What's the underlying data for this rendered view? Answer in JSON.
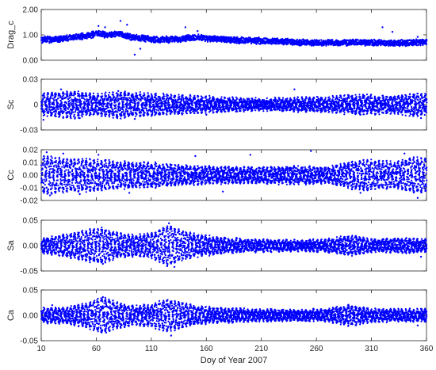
{
  "chart_data": [
    {
      "type": "scatter",
      "ylabel": "Drag_c",
      "xlim": [
        10,
        360
      ],
      "ylim": [
        0,
        2
      ],
      "yticks": [
        0,
        1,
        2
      ],
      "ytick_labels": [
        "0.00",
        "1.00",
        "2.00"
      ],
      "xticks": [
        10,
        60,
        110,
        160,
        210,
        260,
        310,
        360
      ],
      "color": "#0000ff",
      "profile": {
        "kind": "baseline",
        "points": [
          [
            10,
            0.8
          ],
          [
            30,
            0.85
          ],
          [
            50,
            0.95
          ],
          [
            60,
            1.05
          ],
          [
            70,
            1.0
          ],
          [
            80,
            1.05
          ],
          [
            90,
            0.92
          ],
          [
            110,
            0.82
          ],
          [
            130,
            0.82
          ],
          [
            150,
            0.9
          ],
          [
            180,
            0.8
          ],
          [
            220,
            0.75
          ],
          [
            260,
            0.68
          ],
          [
            300,
            0.7
          ],
          [
            330,
            0.68
          ],
          [
            360,
            0.72
          ]
        ],
        "spread": 0.2
      },
      "outliers": [
        [
          62,
          1.35
        ],
        [
          68,
          1.3
        ],
        [
          82,
          1.55
        ],
        [
          88,
          1.4
        ],
        [
          95,
          0.22
        ],
        [
          100,
          0.45
        ],
        [
          141,
          1.3
        ],
        [
          152,
          1.15
        ],
        [
          320,
          1.3
        ],
        [
          329,
          1.12
        ],
        [
          352,
          0.92
        ]
      ]
    },
    {
      "type": "scatter",
      "ylabel": "Sc",
      "xlim": [
        10,
        360
      ],
      "ylim": [
        -0.03,
        0.03
      ],
      "yticks": [
        -0.03,
        0,
        0.03
      ],
      "ytick_labels": [
        "-0.03",
        "0",
        "0.03"
      ],
      "xticks": [
        10,
        60,
        110,
        160,
        210,
        260,
        310,
        360
      ],
      "color": "#0000ff",
      "profile": {
        "kind": "oscillating",
        "points": [
          [
            10,
            0.012
          ],
          [
            40,
            0.014
          ],
          [
            60,
            0.01
          ],
          [
            80,
            0.014
          ],
          [
            110,
            0.011
          ],
          [
            140,
            0.009
          ],
          [
            170,
            0.007
          ],
          [
            210,
            0.005
          ],
          [
            240,
            0.006
          ],
          [
            270,
            0.007
          ],
          [
            300,
            0.01
          ],
          [
            330,
            0.008
          ],
          [
            350,
            0.012
          ],
          [
            360,
            0.01
          ]
        ],
        "period": 7,
        "noise": 0.003
      },
      "outliers": [
        [
          12,
          -0.018
        ],
        [
          28,
          0.018
        ],
        [
          45,
          -0.016
        ],
        [
          80,
          0.016
        ],
        [
          95,
          -0.017
        ],
        [
          160,
          -0.012
        ],
        [
          240,
          0.018
        ],
        [
          300,
          -0.012
        ],
        [
          355,
          -0.016
        ]
      ]
    },
    {
      "type": "scatter",
      "ylabel": "Cc",
      "xlim": [
        10,
        360
      ],
      "ylim": [
        -0.02,
        0.02
      ],
      "yticks": [
        -0.02,
        -0.01,
        0,
        0.01,
        0.02
      ],
      "ytick_labels": [
        "-0.02",
        "-0.01",
        "0.00",
        "0.01",
        "0.02"
      ],
      "xticks": [
        10,
        60,
        110,
        160,
        210,
        260,
        310,
        360
      ],
      "color": "#0000ff",
      "profile": {
        "kind": "oscillating",
        "points": [
          [
            10,
            0.014
          ],
          [
            30,
            0.012
          ],
          [
            60,
            0.011
          ],
          [
            90,
            0.009
          ],
          [
            120,
            0.008
          ],
          [
            150,
            0.006
          ],
          [
            180,
            0.005
          ],
          [
            210,
            0.005
          ],
          [
            240,
            0.006
          ],
          [
            270,
            0.005
          ],
          [
            300,
            0.011
          ],
          [
            330,
            0.009
          ],
          [
            350,
            0.013
          ],
          [
            360,
            0.012
          ]
        ],
        "period": 7,
        "noise": 0.002
      },
      "outliers": [
        [
          15,
          0.018
        ],
        [
          18,
          -0.016
        ],
        [
          30,
          0.017
        ],
        [
          45,
          -0.015
        ],
        [
          62,
          0.016
        ],
        [
          90,
          -0.014
        ],
        [
          150,
          0.015
        ],
        [
          175,
          -0.013
        ],
        [
          200,
          0.016
        ],
        [
          255,
          0.019
        ],
        [
          300,
          -0.014
        ],
        [
          340,
          0.017
        ],
        [
          352,
          -0.018
        ]
      ]
    },
    {
      "type": "scatter",
      "ylabel": "Sa",
      "xlim": [
        10,
        360
      ],
      "ylim": [
        -0.05,
        0.05
      ],
      "yticks": [
        -0.05,
        0,
        0.05
      ],
      "ytick_labels": [
        "-0.05",
        "0.00",
        "0.05"
      ],
      "xticks": [
        10,
        60,
        110,
        160,
        210,
        260,
        310,
        360
      ],
      "color": "#0000ff",
      "profile": {
        "kind": "beat",
        "points": [
          [
            10,
            0.012
          ],
          [
            30,
            0.018
          ],
          [
            50,
            0.028
          ],
          [
            65,
            0.032
          ],
          [
            80,
            0.022
          ],
          [
            95,
            0.018
          ],
          [
            110,
            0.022
          ],
          [
            125,
            0.038
          ],
          [
            135,
            0.03
          ],
          [
            150,
            0.02
          ],
          [
            170,
            0.014
          ],
          [
            200,
            0.01
          ],
          [
            240,
            0.008
          ],
          [
            270,
            0.01
          ],
          [
            290,
            0.018
          ],
          [
            310,
            0.01
          ],
          [
            340,
            0.012
          ],
          [
            360,
            0.01
          ]
        ],
        "period": 7,
        "noise": 0.004
      },
      "outliers": [
        [
          126,
          0.044
        ],
        [
          131,
          -0.042
        ],
        [
          66,
          -0.036
        ],
        [
          355,
          -0.022
        ],
        [
          30,
          0.022
        ]
      ]
    },
    {
      "type": "scatter",
      "ylabel": "Ca",
      "xlim": [
        10,
        360
      ],
      "ylim": [
        -0.05,
        0.05
      ],
      "yticks": [
        -0.05,
        0,
        0.05
      ],
      "ytick_labels": [
        "-0.05",
        "0.00",
        "0.05"
      ],
      "xticks": [
        10,
        60,
        110,
        160,
        210,
        260,
        310,
        360
      ],
      "xtick_labels": [
        "10",
        "60",
        "110",
        "160",
        "210",
        "260",
        "310",
        "360"
      ],
      "xlabel": "Doy of Year 2007",
      "color": "#0000ff",
      "profile": {
        "kind": "beat",
        "points": [
          [
            10,
            0.012
          ],
          [
            30,
            0.014
          ],
          [
            50,
            0.02
          ],
          [
            65,
            0.034
          ],
          [
            80,
            0.022
          ],
          [
            95,
            0.016
          ],
          [
            110,
            0.02
          ],
          [
            125,
            0.03
          ],
          [
            135,
            0.024
          ],
          [
            150,
            0.016
          ],
          [
            170,
            0.012
          ],
          [
            200,
            0.01
          ],
          [
            240,
            0.008
          ],
          [
            270,
            0.01
          ],
          [
            290,
            0.018
          ],
          [
            310,
            0.01
          ],
          [
            340,
            0.01
          ],
          [
            360,
            0.01
          ]
        ],
        "period": 7,
        "noise": 0.004
      },
      "outliers": [
        [
          66,
          0.036
        ],
        [
          69,
          -0.034
        ],
        [
          128,
          -0.04
        ],
        [
          352,
          -0.02
        ],
        [
          20,
          0.02
        ]
      ]
    }
  ]
}
